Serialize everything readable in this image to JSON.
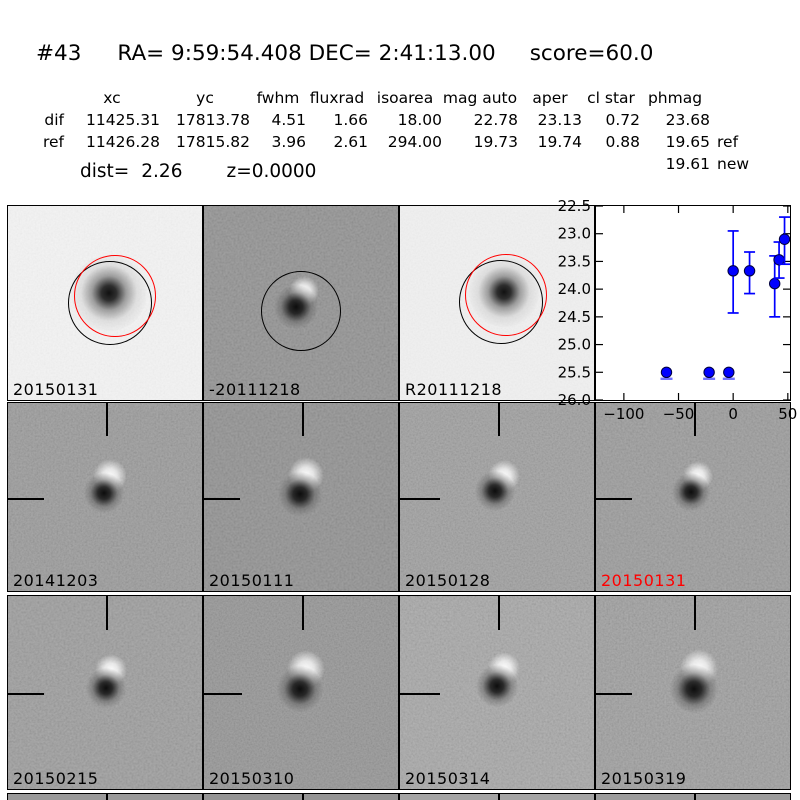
{
  "header": {
    "number": "#43",
    "ra_label": "RA=",
    "ra": "9:59:54.408",
    "dec_label": "DEC=",
    "dec": "2:41:13.00",
    "score_label": "score=",
    "score": "60.0"
  },
  "measurements": {
    "columns": [
      "xc",
      "yc",
      "fwhm",
      "fluxrad",
      "isoarea",
      "mag auto",
      "aper",
      "cl star",
      "phmag"
    ],
    "rows": [
      {
        "label": "dif",
        "values": [
          "11425.31",
          "17813.78",
          "4.51",
          "1.66",
          "18.00",
          "22.78",
          "23.13",
          "0.72",
          "23.68"
        ],
        "suffix": ""
      },
      {
        "label": "ref",
        "values": [
          "11426.28",
          "17815.82",
          "3.96",
          "2.61",
          "294.00",
          "19.73",
          "19.74",
          "0.88",
          "19.65"
        ],
        "suffix": "ref"
      }
    ],
    "extra_phmag": {
      "value": "19.61",
      "suffix": "new"
    },
    "dist_label": "dist=",
    "dist": "2.26",
    "z_label": "z=",
    "z": "0.0000"
  },
  "cutouts": {
    "row1": [
      {
        "label": "20150131"
      },
      {
        "label": "-20111218"
      },
      {
        "label": "R20111218"
      }
    ],
    "row2": [
      {
        "label": "20141203"
      },
      {
        "label": "20150111"
      },
      {
        "label": "20150128"
      },
      {
        "label": "20150131"
      }
    ],
    "row3": [
      {
        "label": "20150215"
      },
      {
        "label": "20150310"
      },
      {
        "label": "20150314"
      },
      {
        "label": "20150319"
      }
    ]
  },
  "colors": {
    "highlight_label": "#ff0000",
    "marker": "#0000ff",
    "aperture_new": "#ff0000",
    "aperture_ref": "#000000"
  },
  "chart_data": {
    "type": "scatter",
    "title": "",
    "xlabel": "",
    "ylabel": "",
    "xlim": [
      -125.5,
      52
    ],
    "ylim": [
      22.5,
      26.0
    ],
    "y_axis_inverted": true,
    "grid": false,
    "x_ticks": [
      -100,
      -50,
      0,
      50
    ],
    "x_tick_labels": [
      "−100",
      "−50",
      "0",
      "50"
    ],
    "y_ticks": [
      22.5,
      23.0,
      23.5,
      24.0,
      24.5,
      25.0,
      25.5,
      26.0
    ],
    "y_tick_labels": [
      "22.5",
      "23.0",
      "23.5",
      "24.0",
      "24.5",
      "25.0",
      "25.5",
      "26.0"
    ],
    "marker_color": "#0000ff",
    "points": [
      {
        "x": -61,
        "y": 25.5,
        "upper_limit": true
      },
      {
        "x": -22,
        "y": 25.5,
        "upper_limit": true
      },
      {
        "x": -4,
        "y": 25.5,
        "upper_limit": true
      },
      {
        "x": 0,
        "y": 23.67,
        "err_top": 22.95,
        "err_bot": 24.43
      },
      {
        "x": 15,
        "y": 23.67,
        "err_top": 23.33,
        "err_bot": 24.08
      },
      {
        "x": 38,
        "y": 23.9,
        "err_top": 23.4,
        "err_bot": 24.5
      },
      {
        "x": 42,
        "y": 23.47,
        "err_top": 23.15,
        "err_bot": 23.8
      },
      {
        "x": 47,
        "y": 23.1,
        "err_top": 22.7,
        "err_bot": 23.55
      }
    ]
  }
}
